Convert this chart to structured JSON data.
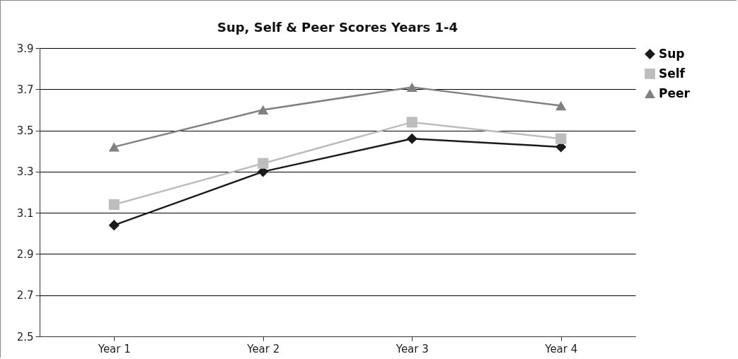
{
  "chart_data": {
    "type": "line",
    "title": "Sup, Self & Peer Scores Years 1-4",
    "categories": [
      "Year 1",
      "Year 2",
      "Year 3",
      "Year 4"
    ],
    "series": [
      {
        "name": "Sup",
        "color": "#1a1a1a",
        "marker": "diamond",
        "values": [
          3.04,
          3.3,
          3.46,
          3.42
        ]
      },
      {
        "name": "Self",
        "color": "#bdbdbd",
        "marker": "square",
        "values": [
          3.14,
          3.34,
          3.54,
          3.46
        ]
      },
      {
        "name": "Peer",
        "color": "#808080",
        "marker": "triangle",
        "values": [
          3.42,
          3.6,
          3.71,
          3.62
        ]
      }
    ],
    "ylim": [
      2.5,
      3.9
    ],
    "yticks": [
      {
        "value": 2.5,
        "label": "2.5"
      },
      {
        "value": 2.7,
        "label": "2.7"
      },
      {
        "value": 2.9,
        "label": "2.9"
      },
      {
        "value": 3.1,
        "label": "3.1"
      },
      {
        "value": 3.3,
        "label": "3.3"
      },
      {
        "value": 3.5,
        "label": "3.5"
      },
      {
        "value": 3.7,
        "label": "3.7"
      },
      {
        "value": 3.9,
        "label": "3.9"
      }
    ],
    "grid": "y",
    "legend": "right",
    "line_style": "solid"
  }
}
